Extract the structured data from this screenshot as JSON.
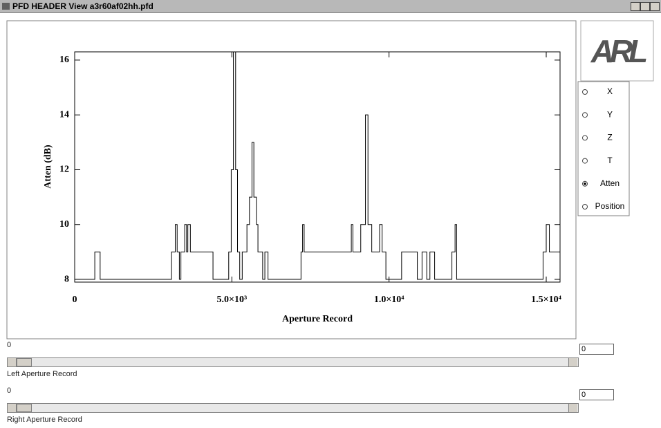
{
  "window": {
    "title": "PFD HEADER View a3r60af02hh.pfd"
  },
  "logo": "ARL",
  "chart_data": {
    "type": "line",
    "step": "post",
    "color": "#000000",
    "xlabel": "Aperture Record",
    "ylabel": "Atten (dB)",
    "x": [
      0,
      640,
      810,
      3080,
      3200,
      3260,
      3330,
      3380,
      3500,
      3560,
      3600,
      3680,
      4400,
      4900,
      4980,
      5050,
      5120,
      5180,
      5250,
      5330,
      5480,
      5560,
      5640,
      5700,
      5780,
      5830,
      5980,
      6050,
      6150,
      7200,
      7250,
      7300,
      8800,
      8850,
      9100,
      9250,
      9330,
      9450,
      9700,
      9780,
      9900,
      10400,
      10900,
      11050,
      11200,
      11300,
      11450,
      12000,
      12100,
      12150,
      14900,
      15000,
      15100,
      15440
    ],
    "y": [
      8,
      9,
      8,
      9,
      10,
      9,
      8,
      9,
      10,
      9,
      10,
      9,
      8,
      9,
      12,
      16.3,
      12,
      9,
      8,
      9,
      10,
      11,
      13,
      11,
      10,
      9,
      8,
      9,
      8,
      9,
      10,
      9,
      10,
      9,
      10,
      14,
      10,
      9,
      10,
      9,
      8,
      9,
      8,
      9,
      8,
      9,
      8,
      9,
      10,
      8,
      9,
      10,
      9,
      9
    ],
    "xlim": [
      0,
      15440
    ],
    "ylim": [
      7.9,
      16.3
    ],
    "xticks": [
      0,
      {
        "value": 5000,
        "label": "5.0×10³"
      },
      {
        "value": 10000,
        "label": "1.0×10⁴"
      },
      {
        "value": 15000,
        "label": "1.5×10⁴"
      }
    ],
    "yticks": [
      8,
      10,
      12,
      14,
      16
    ]
  },
  "options": {
    "items": [
      "X",
      "Y",
      "Z",
      "T",
      "Atten",
      "Position"
    ],
    "selected": 4
  },
  "sliders": [
    {
      "value": "0",
      "box": "0",
      "label": "Left Aperture Record"
    },
    {
      "value": "0",
      "box": "0",
      "label": "Right Aperture Record"
    }
  ]
}
